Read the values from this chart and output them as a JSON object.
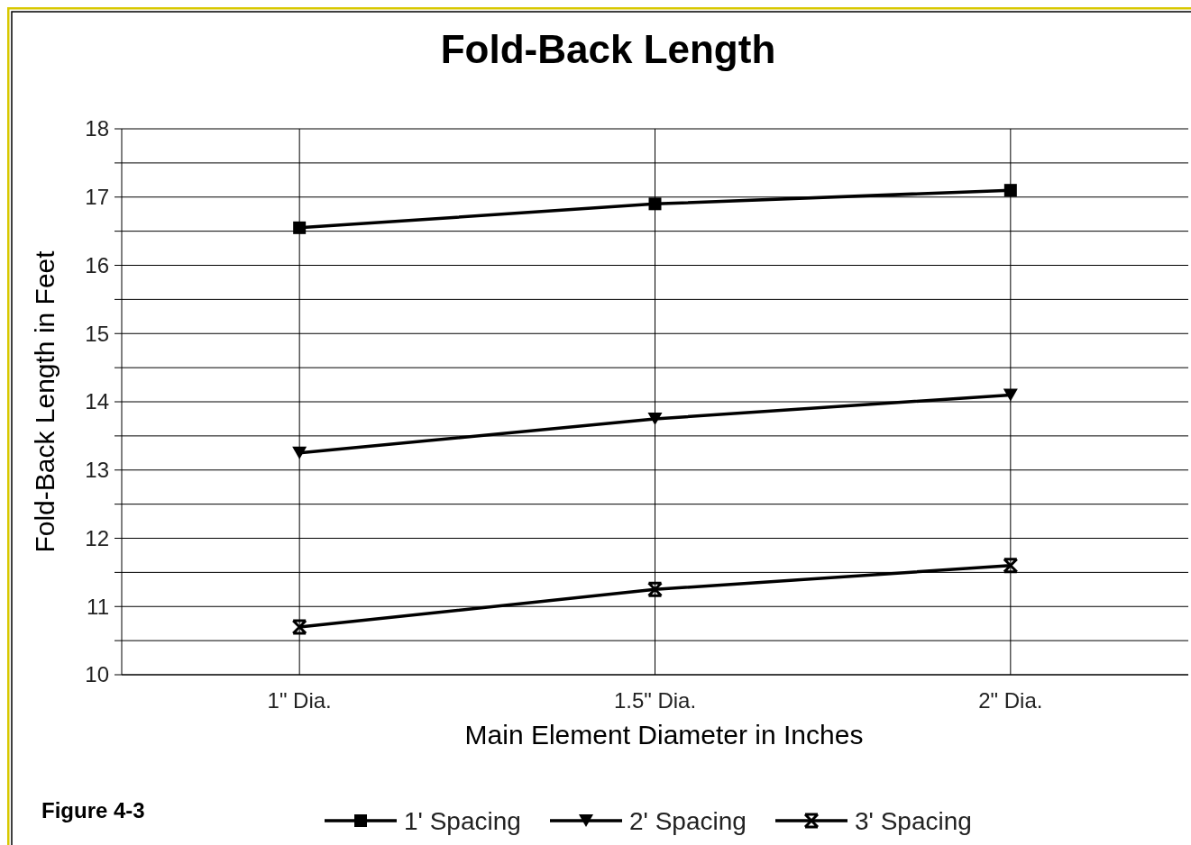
{
  "chart_data": {
    "type": "line",
    "title": "Fold-Back Length",
    "xlabel": "Main Element Diameter in Inches",
    "ylabel": "Fold-Back Length in Feet",
    "categories": [
      "1\" Dia.",
      "1.5\" Dia.",
      "2\" Dia."
    ],
    "series": [
      {
        "name": "1' Spacing",
        "color": "#000000",
        "marker": "square",
        "values": [
          16.55,
          16.9,
          17.1
        ]
      },
      {
        "name": "2' Spacing",
        "color": "#000000",
        "marker": "triangle",
        "values": [
          13.25,
          13.75,
          14.1
        ]
      },
      {
        "name": "3' Spacing",
        "color": "#000000",
        "marker": "cross",
        "values": [
          10.7,
          11.25,
          11.6
        ]
      }
    ],
    "ylim": [
      10,
      18
    ],
    "yticks": [
      10,
      {
        "value": 10.5,
        "label": null
      },
      11,
      {
        "value": 11.5,
        "label": null
      },
      12,
      {
        "value": 12.5,
        "label": null
      },
      13,
      {
        "value": 13.5,
        "label": null
      },
      14,
      {
        "value": 14.5,
        "label": null
      },
      15,
      {
        "value": 15.5,
        "label": null
      },
      16,
      {
        "value": 16.5,
        "label": null
      },
      17,
      {
        "value": 17.5,
        "label": null
      },
      18
    ],
    "grid": true,
    "legend": "bottom",
    "line_style": "solid",
    "annotations": [
      "Figure 4-3"
    ]
  }
}
